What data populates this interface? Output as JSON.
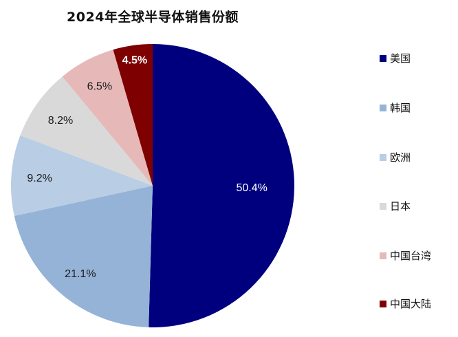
{
  "chart_data": {
    "type": "pie",
    "title": "2024年全球半导体销售份额",
    "categories": [
      "美国",
      "韩国",
      "欧洲",
      "日本",
      "中国台湾",
      "中国大陆"
    ],
    "values": [
      50.4,
      21.1,
      9.2,
      8.2,
      6.5,
      4.5
    ],
    "labels": [
      "50.4%",
      "21.1%",
      "9.2%",
      "8.2%",
      "6.5%",
      "4.5%"
    ],
    "colors": [
      "#00007f",
      "#95b3d7",
      "#b9cde5",
      "#d9d9d9",
      "#e6b9b8",
      "#7f0000"
    ],
    "label_colors": [
      "#ffffff",
      "#1a1a1a",
      "#1a1a1a",
      "#1a1a1a",
      "#1a1a1a",
      "#ffffff"
    ],
    "start_angle": "12 o'clock, clockwise",
    "legend_position": "right",
    "unit": "%"
  },
  "title": "2024年全球半导体销售份额",
  "legend": [
    {
      "label": "美国",
      "color": "#00007f"
    },
    {
      "label": "韩国",
      "color": "#95b3d7"
    },
    {
      "label": "欧洲",
      "color": "#b9cde5"
    },
    {
      "label": "日本",
      "color": "#d9d9d9"
    },
    {
      "label": "中国台湾",
      "color": "#e6b9b8"
    },
    {
      "label": "中国大陆",
      "color": "#7f0000"
    }
  ]
}
